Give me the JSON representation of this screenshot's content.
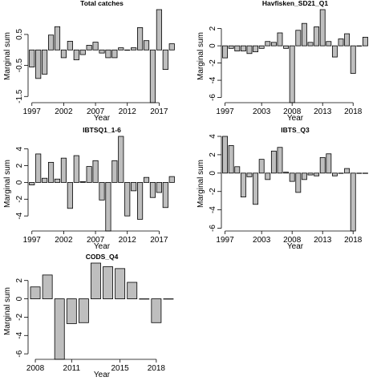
{
  "chart_data": [
    {
      "type": "bar",
      "title": "Total catches",
      "xlabel": "Year",
      "ylabel": "Marginal sum",
      "x": [
        1997,
        1998,
        1999,
        2000,
        2001,
        2002,
        2003,
        2004,
        2005,
        2006,
        2007,
        2008,
        2009,
        2010,
        2011,
        2012,
        2013,
        2014,
        2015,
        2016,
        2017,
        2018,
        2019
      ],
      "values": [
        -0.55,
        -0.92,
        -0.78,
        0.48,
        0.75,
        -0.25,
        0.28,
        -0.32,
        -0.15,
        0.15,
        0.25,
        -0.1,
        -0.25,
        -0.25,
        0.07,
        0.0,
        0.07,
        0.72,
        0.3,
        -1.7,
        1.3,
        -0.63,
        0.2
      ],
      "ylim": [
        -1.7,
        1.3
      ],
      "yticks": [
        -1.5,
        -0.5,
        0.5
      ],
      "ytick_labels": [
        "-1.5",
        "-0.5",
        "0.5"
      ],
      "xticks": [
        1997,
        2002,
        2007,
        2012,
        2017
      ],
      "xtick_labels": [
        "1997",
        "2002",
        "2007",
        "2012",
        "2017"
      ]
    },
    {
      "type": "bar",
      "title": "Havfisken_SD21_Q1",
      "xlabel": "Year",
      "ylabel": "Marginal sum",
      "x": [
        1997,
        1998,
        1999,
        2000,
        2001,
        2002,
        2003,
        2004,
        2005,
        2006,
        2007,
        2008,
        2009,
        2010,
        2011,
        2012,
        2013,
        2014,
        2015,
        2016,
        2017,
        2018,
        2019,
        2020
      ],
      "values": [
        -1.4,
        -0.3,
        -0.6,
        -0.6,
        -0.9,
        -0.7,
        -0.3,
        0.5,
        0.4,
        1.5,
        -0.3,
        -6.6,
        1.8,
        2.6,
        0.4,
        2.2,
        4.2,
        0.5,
        -1.3,
        0.8,
        1.4,
        -3.2,
        0.0,
        1.0
      ],
      "ylim": [
        -6.6,
        4.2
      ],
      "yticks": [
        -6,
        -4,
        -2,
        0,
        2
      ],
      "ytick_labels": [
        "-6",
        "-4",
        "-2",
        "0",
        "2"
      ],
      "xticks": [
        1997,
        2003,
        2008,
        2013,
        2018
      ],
      "xtick_labels": [
        "1997",
        "2003",
        "2008",
        "2013",
        "2018"
      ]
    },
    {
      "type": "bar",
      "title": "IBTSQ1_1-6",
      "xlabel": "Year",
      "ylabel": "Marginal sum",
      "x": [
        1997,
        1998,
        1999,
        2000,
        2001,
        2002,
        2003,
        2004,
        2005,
        2006,
        2007,
        2008,
        2009,
        2010,
        2011,
        2012,
        2013,
        2014,
        2015,
        2016,
        2017,
        2018,
        2019
      ],
      "values": [
        -0.3,
        3.4,
        0.5,
        2.4,
        0.4,
        2.9,
        -3.1,
        3.2,
        0.1,
        1.9,
        2.6,
        -2.1,
        -5.8,
        2.6,
        5.5,
        -4.0,
        -1.0,
        -4.4,
        0.6,
        -1.8,
        -1.2,
        -3.0,
        0.7
      ],
      "extra_values_note": "",
      "ylim": [
        -5.8,
        5.5
      ],
      "yticks": [
        -4,
        -2,
        0,
        2,
        4
      ],
      "ytick_labels": [
        "-4",
        "-2",
        "0",
        "2",
        "4"
      ],
      "xticks": [
        1997,
        2002,
        2007,
        2012,
        2017
      ],
      "xtick_labels": [
        "1997",
        "2002",
        "2007",
        "2012",
        "2017"
      ]
    },
    {
      "type": "bar",
      "title": "IBTS_Q3",
      "xlabel": "Year",
      "ylabel": "Marginal sum",
      "x": [
        1997,
        1998,
        1999,
        2000,
        2001,
        2002,
        2003,
        2004,
        2005,
        2006,
        2007,
        2008,
        2009,
        2010,
        2011,
        2012,
        2013,
        2014,
        2015,
        2016,
        2017,
        2018,
        2019,
        2020
      ],
      "values": [
        4.0,
        3.0,
        0.7,
        -2.6,
        -0.4,
        -3.4,
        1.5,
        -0.7,
        2.4,
        2.8,
        0.1,
        -0.9,
        -2.1,
        -0.7,
        -0.2,
        -0.3,
        1.7,
        2.1,
        -0.3,
        0.0,
        0.5,
        -6.3,
        0.0,
        0.0
      ],
      "ylim": [
        -6.3,
        4.0
      ],
      "yticks": [
        -6,
        -4,
        -2,
        0,
        2,
        4
      ],
      "ytick_labels": [
        "-6",
        "-4",
        "-2",
        "0",
        "2",
        "4"
      ],
      "xticks": [
        1997,
        2003,
        2008,
        2013,
        2018
      ],
      "xtick_labels": [
        "1997",
        "2003",
        "2008",
        "2013",
        "2018"
      ]
    },
    {
      "type": "bar",
      "title": "CODS_Q4",
      "xlabel": "Year",
      "ylabel": "Marginal sum",
      "x": [
        2008,
        2009,
        2010,
        2011,
        2012,
        2013,
        2014,
        2015,
        2016,
        2017,
        2018,
        2019
      ],
      "values": [
        1.3,
        2.6,
        -6.6,
        -2.7,
        -2.6,
        3.9,
        3.5,
        3.3,
        1.8,
        0.0,
        -2.6,
        0.0
      ],
      "ylim": [
        -6.6,
        3.9
      ],
      "yticks": [
        -6,
        -4,
        -2,
        0,
        2
      ],
      "ytick_labels": [
        "-6",
        "-4",
        "-2",
        "0",
        "2"
      ],
      "xticks": [
        2008,
        2011,
        2015,
        2018
      ],
      "xtick_labels": [
        "2008",
        "2011",
        "2015",
        "2018"
      ]
    }
  ]
}
